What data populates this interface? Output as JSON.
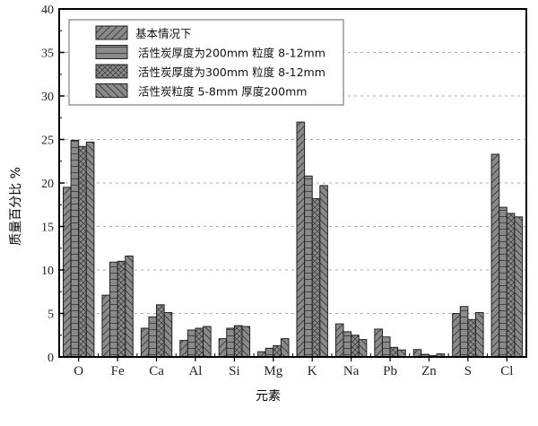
{
  "chart_data": {
    "type": "bar",
    "title": "",
    "xlabel": "元素",
    "ylabel": "质量百分比  %",
    "ylim": [
      0,
      40
    ],
    "yticks": [
      0,
      5,
      10,
      15,
      20,
      25,
      30,
      35,
      40
    ],
    "grid": "horizontal dashed",
    "legend_position": "top-left",
    "categories": [
      "O",
      "Fe",
      "Ca",
      "Al",
      "Si",
      "Mg",
      "K",
      "Na",
      "Pb",
      "Zn",
      "S",
      "Cl"
    ],
    "series": [
      {
        "name": "基本情况下",
        "pattern": "diagonal-up",
        "values": [
          19.5,
          7.1,
          3.3,
          1.9,
          2.1,
          0.6,
          27.0,
          3.8,
          3.2,
          0.85,
          5.0,
          23.3
        ]
      },
      {
        "name": "活性炭厚度为200mm 粒度 8-12mm",
        "pattern": "horizontal",
        "values": [
          24.9,
          10.9,
          4.6,
          3.1,
          3.3,
          1.0,
          20.8,
          2.9,
          2.3,
          0.3,
          5.8,
          17.2
        ]
      },
      {
        "name": "活性炭厚度为300mm 粒度 8-12mm",
        "pattern": "crosshatch",
        "values": [
          24.2,
          11.0,
          6.0,
          3.3,
          3.6,
          1.3,
          18.2,
          2.5,
          1.1,
          0.15,
          4.3,
          16.5
        ]
      },
      {
        "name": "活性炭粒度 5-8mm 厚度200mm",
        "pattern": "diagonal-down",
        "values": [
          24.7,
          11.6,
          5.1,
          3.5,
          3.5,
          2.1,
          19.7,
          2.0,
          0.8,
          0.35,
          5.1,
          16.1
        ]
      }
    ],
    "bar_color": "#8a8a8a"
  }
}
